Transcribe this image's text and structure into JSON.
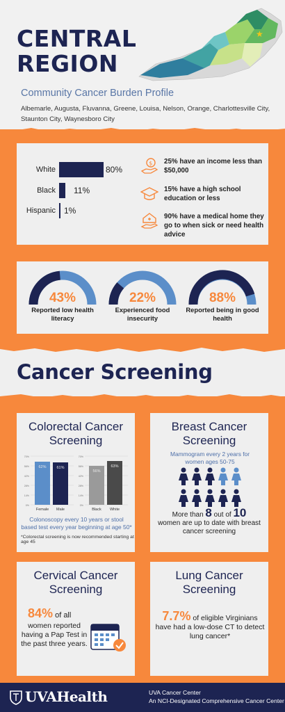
{
  "header": {
    "title_line1": "CENTRAL",
    "title_line2": "REGION",
    "subtitle": "Community Cancer Burden Profile",
    "counties": "Albemarle, Augusta, Fluvanna, Greene, Louisa, Nelson, Orange, Charlottesville City, Staunton City, Waynesboro City"
  },
  "race": {
    "rows": [
      {
        "label": "White",
        "value": "80%",
        "pct": 80
      },
      {
        "label": "Black",
        "value": "11%",
        "pct": 11
      },
      {
        "label": "Hispanic",
        "value": "1%",
        "pct": 1
      }
    ]
  },
  "stats": [
    {
      "icon": "money-hand-icon",
      "text": "25% have an income less than $50,000"
    },
    {
      "icon": "graduation-cap-icon",
      "text": "15% have a high school education or less"
    },
    {
      "icon": "medical-home-icon",
      "text": "90% have a medical home they go to when sick or need health advice"
    }
  ],
  "gauges": [
    {
      "value": "43%",
      "pct": 43,
      "caption": "Reported low health literacy"
    },
    {
      "value": "22%",
      "pct": 22,
      "caption": "Experienced food insecurity"
    },
    {
      "value": "88%",
      "pct": 88,
      "caption": "Reported being in good health"
    }
  ],
  "screening": {
    "title": "Cancer Screening",
    "colorectal": {
      "title": "Colorectal Cancer Screening",
      "caption": "Colonoscopy every 10 years or stool based test every year beginning at age 50*",
      "note": "*Colorectal screening is now recommended starting at age 45"
    },
    "breast": {
      "title": "Breast Cancer Screening",
      "caption": "Mammogram every 2 years for women ages 50-75",
      "stat_prefix": "More than ",
      "stat_num": "8",
      "stat_mid": " out of ",
      "stat_den": "10",
      "stat_suffix": "women are up to date with breast cancer screening",
      "filled": 8,
      "total": 10
    },
    "cervical": {
      "title": "Cervical Cancer Screening",
      "value": "84%",
      "text1": " of all",
      "text2": "women reported having a Pap Test in the past three years."
    },
    "lung": {
      "title": "Lung Cancer Screening",
      "value": "7.7%",
      "text1": " of eligible Virginians have had a low-dose CT to detect lung cancer*"
    }
  },
  "chart_data": [
    {
      "type": "bar",
      "title": "",
      "categories": [
        "Female",
        "Male"
      ],
      "values": [
        62,
        61
      ],
      "ylim": [
        0,
        70
      ],
      "yticks": [
        "70%",
        "56%",
        "42%",
        "28%",
        "14%",
        "0%"
      ],
      "colors": [
        "#5b8ec9",
        "#1d2452"
      ]
    },
    {
      "type": "bar",
      "title": "",
      "categories": [
        "Black",
        "White"
      ],
      "values": [
        56,
        63
      ],
      "ylim": [
        0,
        70
      ],
      "yticks": [
        "70%",
        "56%",
        "42%",
        "28%",
        "14%",
        "0%"
      ],
      "colors": [
        "#9a9a9a",
        "#4a4a4a"
      ]
    }
  ],
  "footer": {
    "logo": "UVAHealth",
    "line1": "UVA Cancer Center",
    "line2": "An NCI-Designated Comprehensive Cancer Center"
  },
  "colors": {
    "navy": "#1d2452",
    "orange": "#f7883c",
    "blue": "#5b8ec9"
  }
}
